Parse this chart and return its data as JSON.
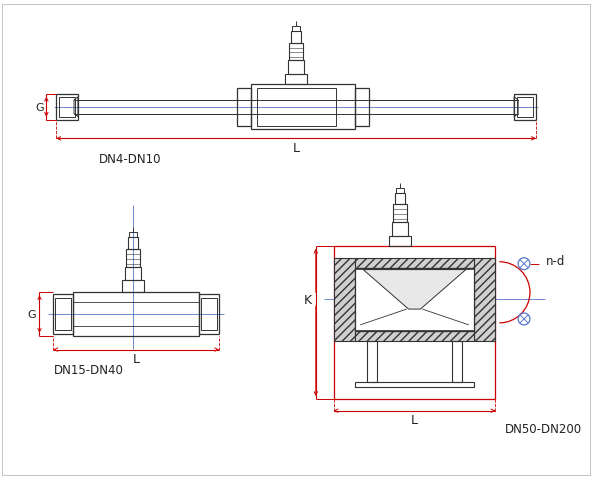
{
  "bg_color": "#ffffff",
  "line_color": "#333333",
  "dim_color_red": "#cc0000",
  "dim_color_blue": "#5577cc",
  "fig_width": 6.0,
  "fig_height": 4.81,
  "labels": {
    "dn4_dn10": "DN4-DN10",
    "dn15_dn40": "DN15-DN40",
    "dn50_dn200": "DN50-DN200",
    "G": "G",
    "L": "L",
    "K": "K",
    "nd": "n-d"
  }
}
